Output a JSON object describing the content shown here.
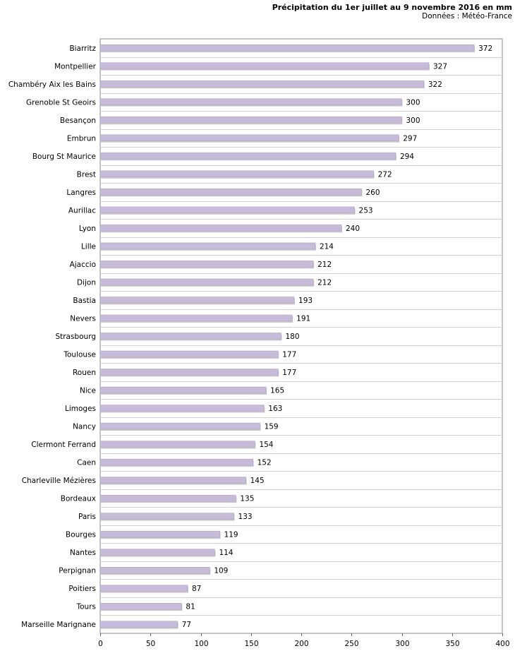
{
  "chart_data": {
    "type": "bar",
    "orientation": "horizontal",
    "title": "Précipitation du 1er juillet au 9 novembre 2016 en mm",
    "subtitle": "Données : Météo-France",
    "categories": [
      "Biarritz",
      "Montpellier",
      "Chambéry Aix les Bains",
      "Grenoble St Geoirs",
      "Besançon",
      "Embrun",
      "Bourg St Maurice",
      "Brest",
      "Langres",
      "Aurillac",
      "Lyon",
      "Lille",
      "Ajaccio",
      "Dijon",
      "Bastia",
      "Nevers",
      "Strasbourg",
      "Toulouse",
      "Rouen",
      "Nice",
      "Limoges",
      "Nancy",
      "Clermont Ferrand",
      "Caen",
      "Charleville Mézières",
      "Bordeaux",
      "Paris",
      "Bourges",
      "Nantes",
      "Perpignan",
      "Poitiers",
      "Tours",
      "Marseille Marignane"
    ],
    "values": [
      372,
      327,
      322,
      300,
      300,
      297,
      294,
      272,
      260,
      253,
      240,
      214,
      212,
      212,
      193,
      191,
      180,
      177,
      177,
      165,
      163,
      159,
      154,
      152,
      145,
      135,
      133,
      119,
      114,
      109,
      87,
      81,
      77
    ],
    "xlim": [
      0,
      400
    ],
    "xticks": [
      0,
      50,
      100,
      150,
      200,
      250,
      300,
      350,
      400
    ],
    "grid": true,
    "bar_color": "#c6bbd8"
  }
}
